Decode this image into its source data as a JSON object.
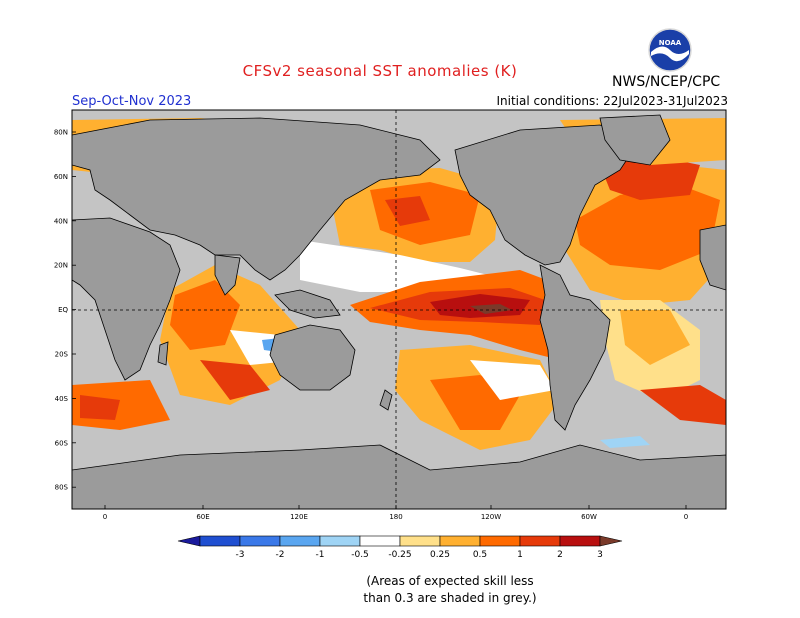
{
  "title": "CFSv2 seasonal SST anomalies (K)",
  "season": "Sep-Oct-Nov 2023",
  "initial_conditions": "Initial conditions: 22Jul2023-31Jul2023",
  "agency": "NWS/NCEP/CPC",
  "logo_text": "NOAA",
  "lat_labels": [
    "80N",
    "60N",
    "40N",
    "20N",
    "EQ",
    "20S",
    "40S",
    "60S",
    "80S"
  ],
  "lon_labels": [
    "0",
    "60E",
    "120E",
    "180",
    "120W",
    "60W",
    "0"
  ],
  "colorbar": {
    "labels": [
      "-3",
      "-2",
      "-1",
      "-0.5",
      "-0.25",
      "0.25",
      "0.5",
      "1",
      "2",
      "3"
    ],
    "colors": [
      "#1a1a9c",
      "#1f4fd1",
      "#3a78e8",
      "#5aa6f0",
      "#9fd4f5",
      "#ffffff",
      "#ffe08a",
      "#ffb030",
      "#ff6a00",
      "#e63a0a",
      "#b80f0f",
      "#7a3a2a"
    ]
  },
  "note_line1": "(Areas of expected skill less",
  "note_line2": "than 0.3 are shaded in grey.)",
  "colors": {
    "land": "#9b9b9b",
    "ocean_grey": "#c4c4c4",
    "title": "#e02020",
    "season": "#2030d0"
  }
}
